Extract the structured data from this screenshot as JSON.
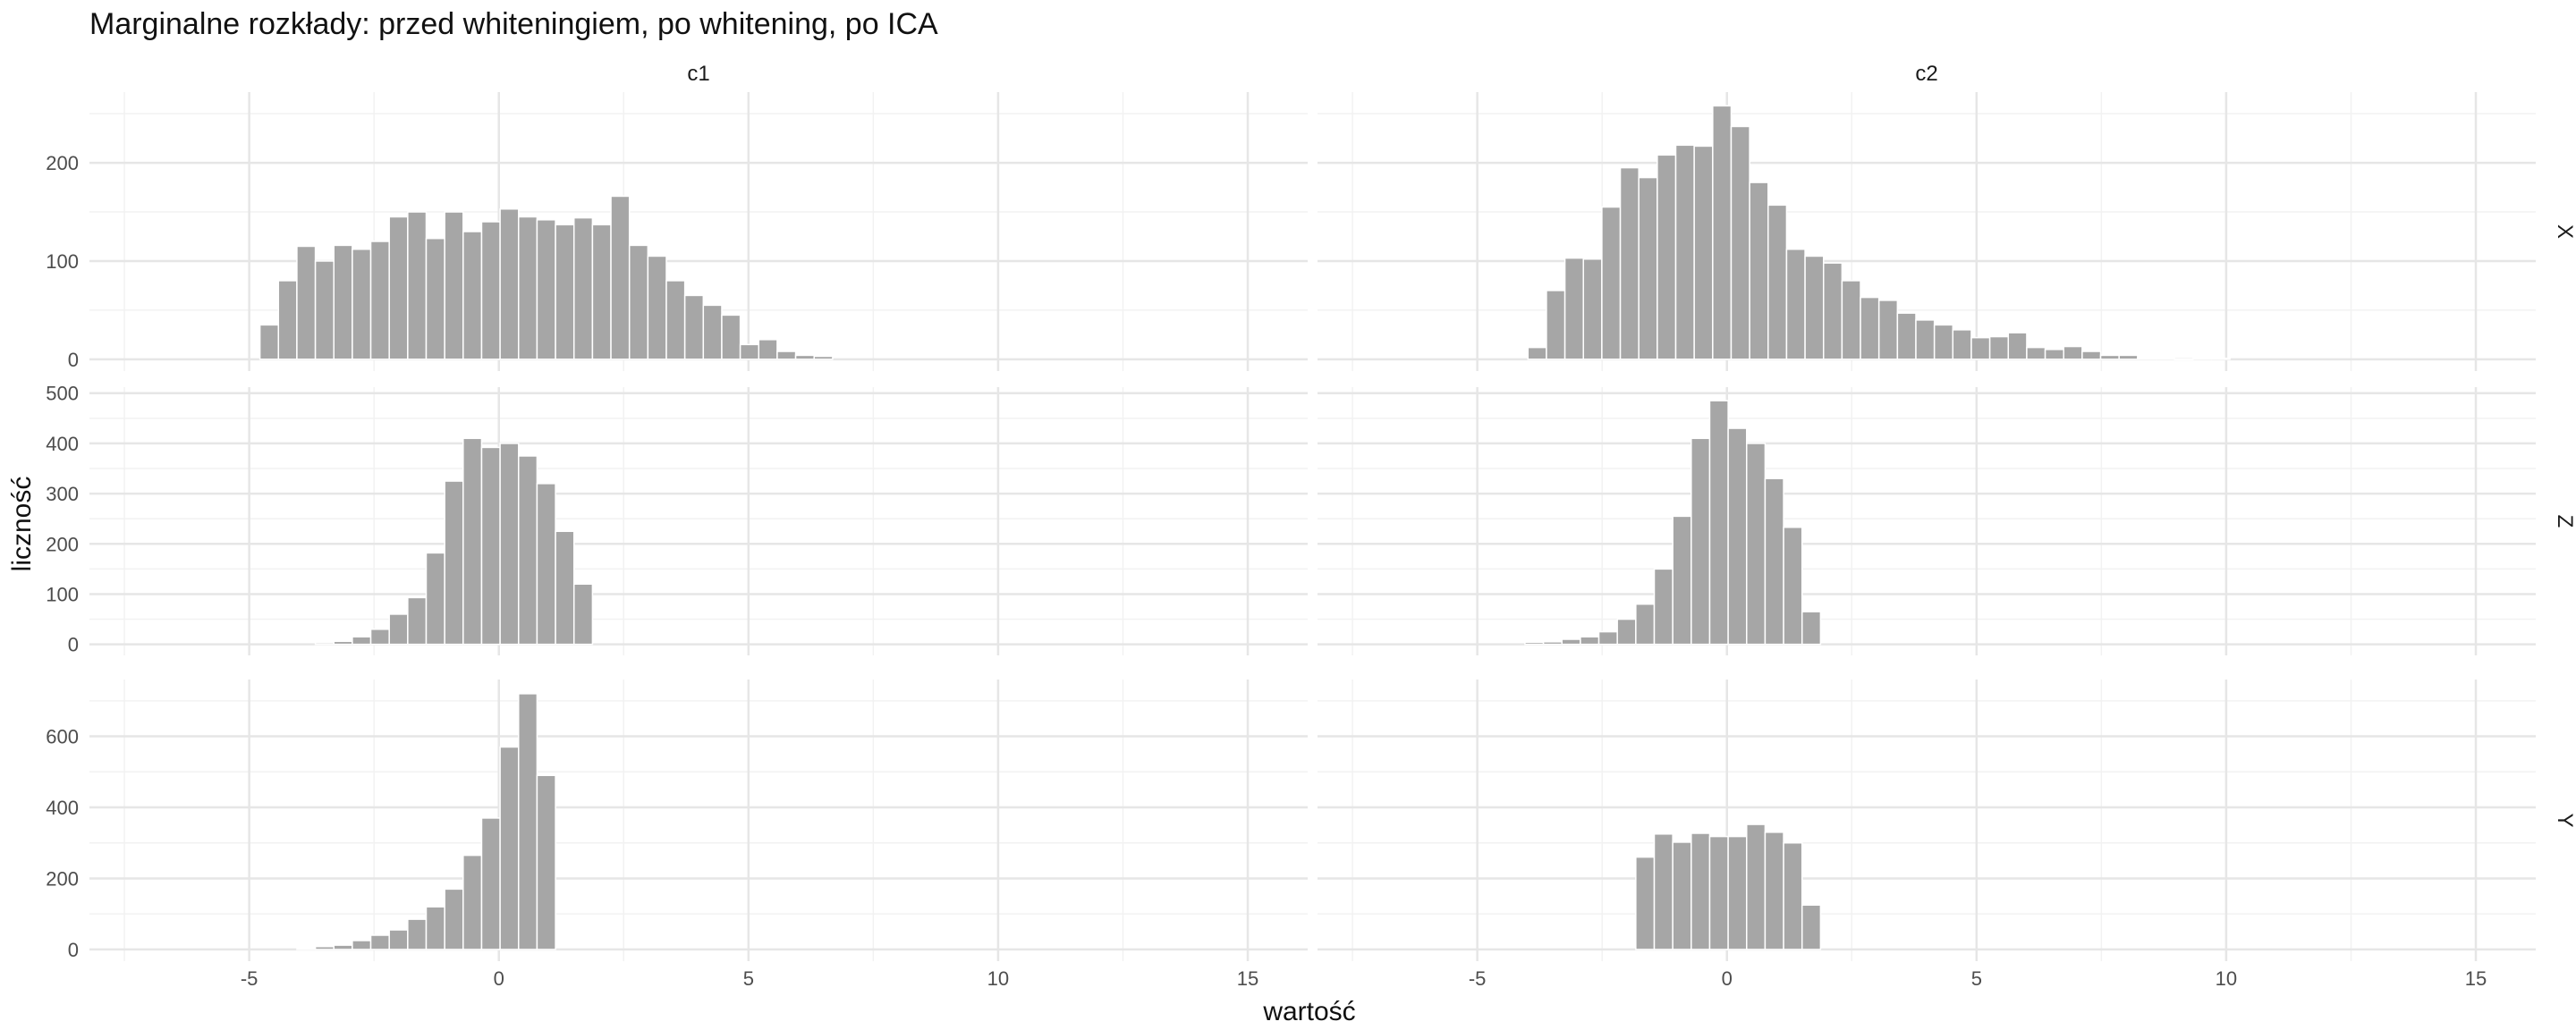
{
  "chart_data": {
    "type": "bar",
    "title": "Marginalne rozkłady: przed whiteningiem, po whitening, po ICA",
    "xlabel": "wartość",
    "ylabel": "liczność",
    "x_range": [
      -8.2,
      16.2
    ],
    "x_ticks": [
      -5,
      0,
      5,
      10,
      15
    ],
    "x_tick_labels": [
      "-5",
      "0",
      "5",
      "10",
      "15"
    ],
    "bin_width": 0.37,
    "grid": true,
    "bar_color": "#a6a6a6",
    "columns": [
      "c1",
      "c2"
    ],
    "rows": [
      {
        "label": "X",
        "y_range": [
          -12,
          272
        ],
        "y_ticks": [
          0,
          100,
          200
        ],
        "panels": [
          {
            "column": "c1",
            "x": [
              -4.6,
              -4.23,
              -3.86,
              -3.49,
              -3.12,
              -2.75,
              -2.38,
              -2.01,
              -1.64,
              -1.27,
              -0.9,
              -0.53,
              -0.16,
              0.21,
              0.58,
              0.95,
              1.32,
              1.69,
              2.06,
              2.43,
              2.8,
              3.17,
              3.54,
              3.91,
              4.28,
              4.65,
              5.02,
              5.39,
              5.76,
              6.13,
              6.5
            ],
            "values": [
              35,
              80,
              115,
              100,
              116,
              112,
              120,
              145,
              150,
              123,
              150,
              130,
              140,
              153,
              145,
              142,
              137,
              144,
              137,
              166,
              116,
              105,
              80,
              65,
              55,
              45,
              15,
              20,
              8,
              4,
              3
            ]
          },
          {
            "column": "c2",
            "x": [
              -3.8,
              -3.43,
              -3.06,
              -2.69,
              -2.32,
              -1.95,
              -1.58,
              -1.21,
              -0.84,
              -0.47,
              -0.1,
              0.27,
              0.64,
              1.01,
              1.38,
              1.75,
              2.12,
              2.49,
              2.86,
              3.23,
              3.6,
              3.97,
              4.34,
              4.71,
              5.08,
              5.45,
              5.82,
              6.19,
              6.56,
              6.93,
              7.3,
              7.67,
              8.04,
              8.41,
              8.78,
              9.15,
              9.52,
              9.89
            ],
            "values": [
              12,
              70,
              103,
              102,
              155,
              195,
              185,
              208,
              218,
              217,
              258,
              237,
              180,
              157,
              112,
              105,
              98,
              80,
              63,
              60,
              47,
              40,
              35,
              30,
              22,
              23,
              27,
              12,
              10,
              13,
              8,
              4,
              4,
              1,
              1,
              0,
              1,
              1
            ]
          }
        ]
      },
      {
        "label": "Z",
        "y_range": [
          -22,
          512
        ],
        "y_ticks": [
          0,
          100,
          200,
          300,
          400,
          500
        ],
        "panels": [
          {
            "column": "c1",
            "x": [
              -3.49,
              -3.12,
              -2.75,
              -2.38,
              -2.01,
              -1.64,
              -1.27,
              -0.9,
              -0.53,
              -0.16,
              0.21,
              0.58,
              0.95,
              1.32,
              1.69
            ],
            "values": [
              3,
              6,
              15,
              30,
              60,
              93,
              182,
              325,
              410,
              392,
              400,
              375,
              320,
              225,
              120
            ]
          },
          {
            "column": "c2",
            "x": [
              -3.86,
              -3.49,
              -3.12,
              -2.75,
              -2.38,
              -2.01,
              -1.64,
              -1.27,
              -0.9,
              -0.53,
              -0.16,
              0.21,
              0.58,
              0.95,
              1.32,
              1.69
            ],
            "values": [
              4,
              5,
              10,
              15,
              25,
              50,
              80,
              150,
              255,
              410,
              485,
              430,
              400,
              330,
              233,
              65
            ]
          }
        ]
      },
      {
        "label": "Y",
        "y_range": [
          -33,
          760
        ],
        "y_ticks": [
          0,
          200,
          400,
          600
        ],
        "panels": [
          {
            "column": "c1",
            "x": [
              -3.86,
              -3.49,
              -3.12,
              -2.75,
              -2.38,
              -2.01,
              -1.64,
              -1.27,
              -0.9,
              -0.53,
              -0.16,
              0.21,
              0.58,
              0.95
            ],
            "values": [
              3,
              8,
              12,
              25,
              40,
              55,
              85,
              120,
              170,
              265,
              370,
              570,
              720,
              490
            ]
          },
          {
            "column": "c2",
            "x": [
              -1.64,
              -1.27,
              -0.9,
              -0.53,
              -0.16,
              0.21,
              0.58,
              0.95,
              1.32,
              1.69
            ],
            "values": [
              260,
              325,
              302,
              327,
              318,
              318,
              352,
              330,
              300,
              125
            ]
          }
        ]
      }
    ]
  }
}
